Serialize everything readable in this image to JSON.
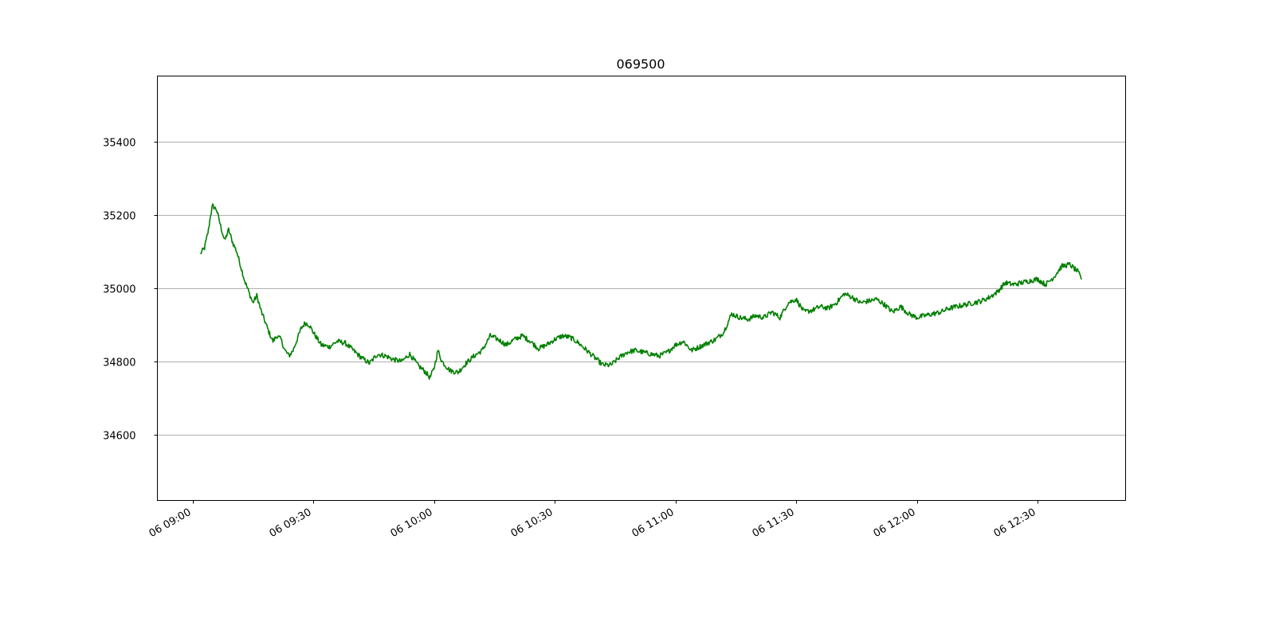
{
  "chart_data": {
    "type": "line",
    "title": "069500",
    "xlabel": "",
    "ylabel": "",
    "grid": "horizontal",
    "x_range": [
      "06 09:00",
      "06 12:45"
    ],
    "ylim": [
      34420,
      35580
    ],
    "yticks": [
      34600,
      34800,
      35000,
      35200,
      35400
    ],
    "xticks": [
      "06 09:00",
      "06 09:30",
      "06 10:00",
      "06 10:30",
      "06 11:00",
      "06 11:30",
      "06 12:00",
      "06 12:30"
    ],
    "colors": {
      "series": "#008000",
      "grid": "#b0b0b0",
      "frame": "#000000"
    },
    "series": [
      {
        "x": [
          "06 09:02",
          "06 09:03",
          "06 09:04",
          "06 09:04:30",
          "06 09:05",
          "06 09:06",
          "06 09:07",
          "06 09:08",
          "06 09:09",
          "06 09:10",
          "06 09:11",
          "06 09:12",
          "06 09:13",
          "06 09:14",
          "06 09:15",
          "06 09:16",
          "06 09:17",
          "06 09:18",
          "06 09:19",
          "06 09:20",
          "06 09:21",
          "06 09:22",
          "06 09:23",
          "06 09:24",
          "06 09:25",
          "06 09:26",
          "06 09:27",
          "06 09:28",
          "06 09:29",
          "06 09:30",
          "06 09:32",
          "06 09:34",
          "06 09:36",
          "06 09:38",
          "06 09:40",
          "06 09:42",
          "06 09:44",
          "06 09:46",
          "06 09:48",
          "06 09:50",
          "06 09:52",
          "06 09:54",
          "06 09:56",
          "06 09:58",
          "06 09:59",
          "06 10:00",
          "06 10:01",
          "06 10:02",
          "06 10:04",
          "06 10:06",
          "06 10:08",
          "06 10:10",
          "06 10:12",
          "06 10:14",
          "06 10:16",
          "06 10:18",
          "06 10:20",
          "06 10:22",
          "06 10:24",
          "06 10:26",
          "06 10:28",
          "06 10:30",
          "06 10:32",
          "06 10:34",
          "06 10:36",
          "06 10:38",
          "06 10:40",
          "06 10:42",
          "06 10:44",
          "06 10:46",
          "06 10:48",
          "06 10:50",
          "06 10:52",
          "06 10:54",
          "06 10:56",
          "06 10:58",
          "06 11:00",
          "06 11:02",
          "06 11:04",
          "06 11:06",
          "06 11:08",
          "06 11:10",
          "06 11:12",
          "06 11:14",
          "06 11:16",
          "06 11:18",
          "06 11:20",
          "06 11:22",
          "06 11:24",
          "06 11:26",
          "06 11:28",
          "06 11:30",
          "06 11:32",
          "06 11:34",
          "06 11:36",
          "06 11:38",
          "06 11:40",
          "06 11:42",
          "06 11:44",
          "06 11:46",
          "06 11:48",
          "06 11:50",
          "06 11:52",
          "06 11:54",
          "06 11:56",
          "06 11:58",
          "06 12:00",
          "06 12:02",
          "06 12:04",
          "06 12:06",
          "06 12:08",
          "06 12:10",
          "06 12:12",
          "06 12:14",
          "06 12:16",
          "06 12:18",
          "06 12:20",
          "06 12:22",
          "06 12:24",
          "06 12:26",
          "06 12:28",
          "06 12:30",
          "06 12:32",
          "06 12:34",
          "06 12:36",
          "06 12:38",
          "06 12:40",
          "06 12:41"
        ],
        "y": [
          35095,
          35110,
          35160,
          35200,
          35225,
          35215,
          35170,
          35130,
          35160,
          35125,
          35100,
          35060,
          35020,
          34990,
          34960,
          34980,
          34940,
          34910,
          34880,
          34855,
          34870,
          34860,
          34830,
          34815,
          34830,
          34860,
          34890,
          34905,
          34900,
          34880,
          34845,
          34840,
          34855,
          34850,
          34830,
          34810,
          34795,
          34820,
          34815,
          34805,
          34800,
          34820,
          34790,
          34770,
          34755,
          34780,
          34830,
          34800,
          34775,
          34770,
          34795,
          34815,
          34830,
          34870,
          34860,
          34845,
          34860,
          34870,
          34855,
          34835,
          34845,
          34860,
          34870,
          34865,
          34850,
          34830,
          34810,
          34790,
          34790,
          34810,
          34825,
          34830,
          34825,
          34820,
          34815,
          34825,
          34845,
          34855,
          34830,
          34840,
          34850,
          34860,
          34880,
          34930,
          34920,
          34915,
          34925,
          34920,
          34935,
          34920,
          34960,
          34970,
          34935,
          34940,
          34950,
          34945,
          34960,
          34985,
          34975,
          34960,
          34965,
          34970,
          34955,
          34935,
          34950,
          34930,
          34920,
          34925,
          34930,
          34935,
          34945,
          34950,
          34955,
          34960,
          34965,
          34975,
          34990,
          35015,
          35010,
          35015,
          35020,
          35025,
          35010,
          35030,
          35060,
          35065,
          35045,
          35025
        ]
      }
    ]
  }
}
